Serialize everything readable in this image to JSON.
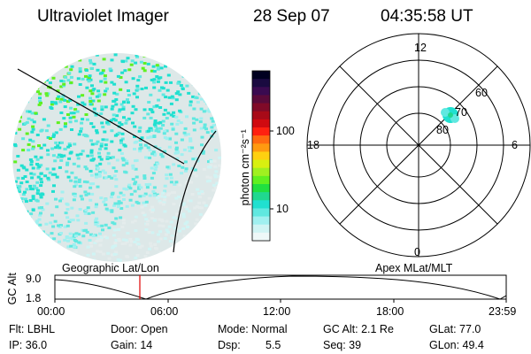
{
  "header": {
    "instrument": "Ultraviolet Imager",
    "date": "28 Sep 07",
    "time": "04:35:58 UT"
  },
  "colorbar": {
    "label": "photon cm⁻²s⁻¹",
    "ticks": [
      "100",
      "10"
    ],
    "colors": [
      "#000020",
      "#1a0a40",
      "#3a0a50",
      "#5a0a3a",
      "#800a28",
      "#a80a18",
      "#d00a10",
      "#ff2010",
      "#ff6a10",
      "#ff9a10",
      "#ffd010",
      "#d8f010",
      "#a0f020",
      "#60f020",
      "#20e040",
      "#20d890",
      "#20e0d0",
      "#60e8e0",
      "#a0f0f0",
      "#d0f4f4",
      "#eef8f8"
    ]
  },
  "polar_plot": {
    "mlt_labels": {
      "top": "12",
      "bottom": "0",
      "left": "18",
      "right": "6"
    },
    "lat_labels": [
      "60",
      "70",
      "80"
    ]
  },
  "panel_labels": {
    "geographic": "Geographic Lat/Lon",
    "apex": "Apex MLat/MLT"
  },
  "altitude_plot": {
    "axis_label": "GC Alt",
    "y_ticks": [
      "9.0",
      "1.8"
    ],
    "x_ticks": [
      "00:00",
      "06:00",
      "12:00",
      "18:00",
      "23:59"
    ],
    "marker_time": "04:35:58"
  },
  "info": {
    "flt": "Flt: LBHL",
    "ip": "IP: 36.0",
    "door": "Door: Open",
    "gain": "Gain: 14",
    "mode": "Mode: Normal",
    "dsp_label": "Dsp:",
    "dsp_value": "5.5",
    "gc_alt": "GC Alt: 2.1 Re",
    "seq": "Seq: 39",
    "glat": "GLat: 77.0",
    "glon": "GLon: 49.4"
  }
}
